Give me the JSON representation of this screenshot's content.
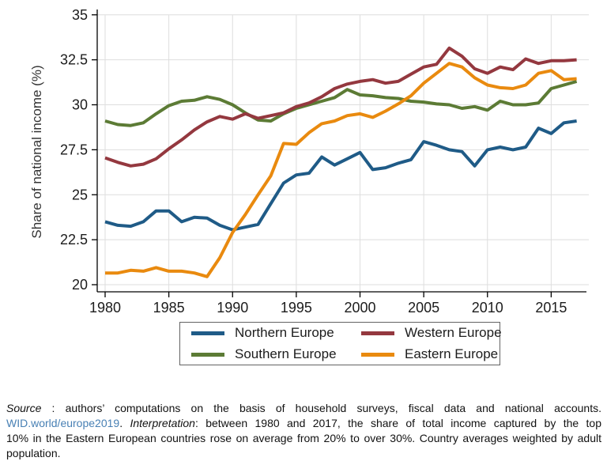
{
  "chart_data": {
    "type": "line",
    "title": "",
    "xlabel": "",
    "ylabel": "Share of national income (%)",
    "ylim": [
      20,
      35
    ],
    "xlim": [
      1980,
      2017
    ],
    "y_ticks": [
      "20",
      "22.5",
      "25",
      "27.5",
      "30",
      "32.5",
      "35"
    ],
    "y_tick_values": [
      20,
      22.5,
      25,
      27.5,
      30,
      32.5,
      35
    ],
    "x_ticks": [
      "1980",
      "1985",
      "1990",
      "1995",
      "2000",
      "2005",
      "2010",
      "2015"
    ],
    "x_tick_values": [
      1980,
      1985,
      1990,
      1995,
      2000,
      2005,
      2010,
      2015
    ],
    "grid": true,
    "legend_position": "bottom",
    "x": [
      1980,
      1981,
      1982,
      1983,
      1984,
      1985,
      1986,
      1987,
      1988,
      1989,
      1990,
      1991,
      1992,
      1993,
      1994,
      1995,
      1996,
      1997,
      1998,
      1999,
      2000,
      2001,
      2002,
      2003,
      2004,
      2005,
      2006,
      2007,
      2008,
      2009,
      2010,
      2011,
      2012,
      2013,
      2014,
      2015,
      2016,
      2017
    ],
    "series": [
      {
        "name": "Northern Europe",
        "color": "#1f5b87",
        "values": [
          23.5,
          23.3,
          23.25,
          23.5,
          24.1,
          24.1,
          23.5,
          23.75,
          23.7,
          23.3,
          23.05,
          23.2,
          23.35,
          24.5,
          25.65,
          26.1,
          26.2,
          27.1,
          26.65,
          27.0,
          27.35,
          26.4,
          26.5,
          26.75,
          26.95,
          27.95,
          27.75,
          27.5,
          27.4,
          26.6,
          27.5,
          27.65,
          27.5,
          27.65,
          28.7,
          28.4,
          29.0,
          29.1
        ]
      },
      {
        "name": "Western Europe",
        "color": "#94383f",
        "values": [
          27.05,
          26.8,
          26.6,
          26.7,
          27.0,
          27.55,
          28.05,
          28.6,
          29.05,
          29.35,
          29.2,
          29.5,
          29.25,
          29.4,
          29.55,
          29.9,
          30.1,
          30.45,
          30.9,
          31.15,
          31.3,
          31.4,
          31.2,
          31.3,
          31.7,
          32.1,
          32.25,
          33.15,
          32.7,
          32.0,
          31.75,
          32.1,
          31.95,
          32.55,
          32.3,
          32.45,
          32.45,
          32.5
        ]
      },
      {
        "name": "Southern Europe",
        "color": "#5c7b35",
        "values": [
          29.1,
          28.9,
          28.85,
          29.0,
          29.5,
          29.95,
          30.2,
          30.25,
          30.45,
          30.3,
          30.0,
          29.55,
          29.15,
          29.1,
          29.5,
          29.8,
          30.0,
          30.2,
          30.4,
          30.85,
          30.55,
          30.5,
          30.4,
          30.35,
          30.2,
          30.15,
          30.05,
          30.0,
          29.8,
          29.9,
          29.7,
          30.2,
          30.0,
          30.0,
          30.1,
          30.9,
          31.1,
          31.3
        ]
      },
      {
        "name": "Eastern Europe",
        "color": "#e98a0f",
        "values": [
          20.65,
          20.65,
          20.8,
          20.75,
          20.95,
          20.75,
          20.75,
          20.65,
          20.45,
          21.5,
          22.9,
          23.9,
          25.0,
          26.05,
          27.85,
          27.8,
          28.45,
          28.95,
          29.1,
          29.4,
          29.5,
          29.3,
          29.65,
          30.05,
          30.5,
          31.2,
          31.75,
          32.3,
          32.1,
          31.5,
          31.1,
          30.95,
          30.9,
          31.1,
          31.75,
          31.9,
          31.4,
          31.45
        ]
      }
    ],
    "draw_order": [
      0,
      2,
      1,
      3
    ],
    "line_width": 4,
    "gridline_color": "#dedede",
    "axis_color": "#000000"
  },
  "caption": {
    "lines": [
      [
        {
          "t": "Source",
          "c": "it"
        },
        {
          "t": " :  ",
          "c": ""
        },
        {
          "t": "authors’ computations on the basis of household surveys, fiscal data and national accounts.",
          "c": ""
        }
      ],
      [
        {
          "t": "WID.world/europe2019",
          "c": "lk"
        },
        {
          "t": ". ",
          "c": ""
        },
        {
          "t": "Interpretation",
          "c": "it"
        },
        {
          "t": ": between 1980 and 2017, the share of total income captured by the top",
          "c": ""
        }
      ],
      [
        {
          "t": "10% in the Eastern European countries rose on average from 20% to over 30%. Country averages weighted by adult",
          "c": ""
        }
      ],
      [
        {
          "t": "population.",
          "c": ""
        }
      ]
    ],
    "link_color": "#4880b4"
  }
}
